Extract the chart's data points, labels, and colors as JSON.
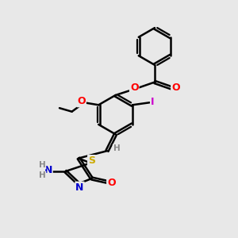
{
  "bg_color": "#e8e8e8",
  "bond_color": "#000000",
  "bond_width": 1.8,
  "atom_colors": {
    "O": "#ff0000",
    "N": "#0000cc",
    "S": "#ccaa00",
    "I": "#cc00cc",
    "C": "#000000",
    "H": "#888888"
  },
  "font_size_atom": 9.0,
  "font_size_small": 7.5
}
